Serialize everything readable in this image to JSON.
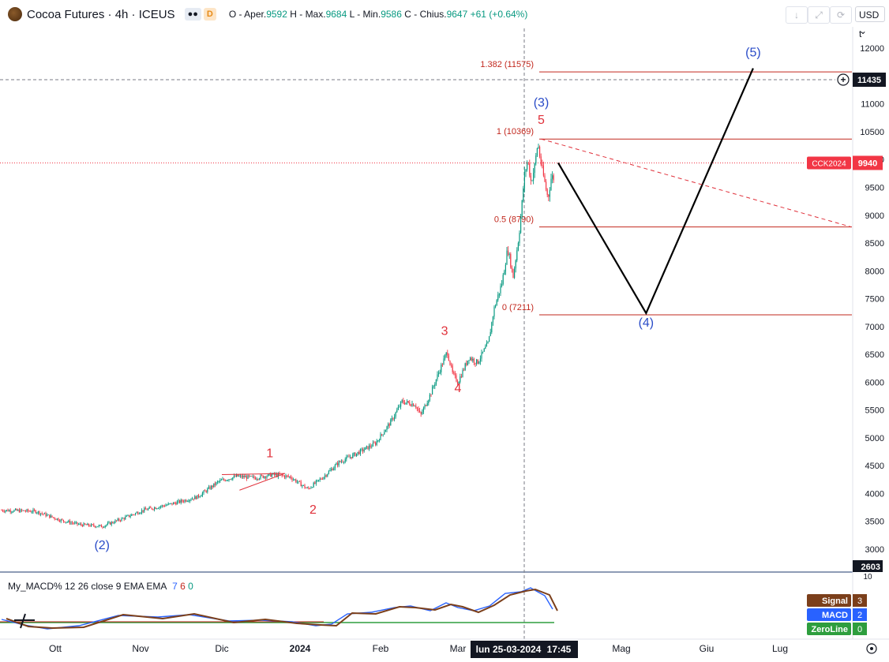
{
  "header": {
    "symbol": "Cocoa Futures · 4h · ICEUS",
    "badge_eye": "",
    "badge_d": "D",
    "ohlc_label_o": "O - Aper.",
    "ohlc_o": "9592",
    "ohlc_label_h": "H - Max.",
    "ohlc_h": "9684",
    "ohlc_label_l": "L - Min.",
    "ohlc_l": "9586",
    "ohlc_label_c": "C - Chius.",
    "ohlc_c": "9647",
    "ohlc_change": "+61 (+0.64%)"
  },
  "toolbar": {
    "download_icon": "↓",
    "expand_icon": "⤢",
    "refresh_icon": "⟳",
    "currency": "USD",
    "currency_arrow": "⌄",
    "unit": "t"
  },
  "price_axis": {
    "ticks": [
      "12000",
      "11500",
      "11000",
      "10500",
      "10000",
      "9500",
      "9000",
      "8500",
      "8000",
      "7500",
      "7000",
      "6500",
      "6000",
      "5500",
      "5000",
      "4500",
      "4000",
      "3500",
      "3000"
    ],
    "crosshair_price": "11435",
    "last_price_label": "CCK2024",
    "last_price": "9940",
    "low_label": "2603",
    "macd_top_tick": "10"
  },
  "time_axis": {
    "labels": [
      "Ott",
      "Nov",
      "Dic",
      "2024",
      "Feb",
      "Mar",
      "Mag",
      "Giu",
      "Lug"
    ],
    "crosshair_date": "lun 25-03-2024",
    "crosshair_time": "17:45"
  },
  "fib_levels": [
    {
      "label": "1.382 (11575)",
      "price": 11575
    },
    {
      "label": "1 (10369)",
      "price": 10369
    },
    {
      "label": "0.5 (8790)",
      "price": 8790
    },
    {
      "label": "0 (7211)",
      "price": 7211
    }
  ],
  "wave_labels": {
    "w2_major": "(2)",
    "w3_major": "(3)",
    "w4_major": "(4)",
    "w5_major": "(5)",
    "w1": "1",
    "w2": "2",
    "w3": "3",
    "w4": "4",
    "w5": "5"
  },
  "macd": {
    "title": "My_MACD% 12 26 close 9 EMA EMA",
    "p1": "7",
    "p2": "6",
    "p3": "0",
    "legend": [
      {
        "name": "Signal",
        "value": "3",
        "color": "#7b3f1b"
      },
      {
        "name": "MACD",
        "value": "2",
        "color": "#2962ff"
      },
      {
        "name": "ZeroLine",
        "value": "0",
        "color": "#2e9e3e"
      }
    ]
  },
  "colors": {
    "up": "#089981",
    "down": "#f23645",
    "fib": "#c2281e",
    "major_wave": "#2a4cc8",
    "minor_wave": "#e0303a",
    "projection": "#000000"
  },
  "chart_data": {
    "type": "candlestick",
    "title": "Cocoa Futures · 4h · ICEUS",
    "x_range": [
      "2023-09-20",
      "2024-07-20"
    ],
    "ylim": [
      2603,
      12300
    ],
    "path_points": [
      {
        "date": "2023-09-20",
        "price": 3700
      },
      {
        "date": "2023-09-27",
        "price": 3680
      },
      {
        "date": "2023-10-03",
        "price": 3520
      },
      {
        "date": "2023-10-10",
        "price": 3440
      },
      {
        "date": "2023-10-18",
        "price": 3410
      },
      {
        "date": "2023-10-26",
        "price": 3560
      },
      {
        "date": "2023-11-02",
        "price": 3700
      },
      {
        "date": "2023-11-13",
        "price": 3820
      },
      {
        "date": "2023-11-22",
        "price": 3940
      },
      {
        "date": "2023-11-30",
        "price": 4220
      },
      {
        "date": "2023-12-07",
        "price": 4310
      },
      {
        "date": "2023-12-14",
        "price": 4280
      },
      {
        "date": "2023-12-21",
        "price": 4340
      },
      {
        "date": "2023-12-28",
        "price": 4300
      },
      {
        "date": "2024-01-04",
        "price": 4080
      },
      {
        "date": "2024-01-10",
        "price": 4300
      },
      {
        "date": "2024-01-16",
        "price": 4560
      },
      {
        "date": "2024-01-22",
        "price": 4700
      },
      {
        "date": "2024-01-30",
        "price": 4900
      },
      {
        "date": "2024-02-05",
        "price": 5300
      },
      {
        "date": "2024-02-09",
        "price": 5650
      },
      {
        "date": "2024-02-14",
        "price": 5600
      },
      {
        "date": "2024-02-16",
        "price": 5400
      },
      {
        "date": "2024-02-20",
        "price": 5820
      },
      {
        "date": "2024-02-23",
        "price": 6200
      },
      {
        "date": "2024-02-26",
        "price": 6550
      },
      {
        "date": "2024-02-28",
        "price": 6150
      },
      {
        "date": "2024-03-01",
        "price": 6000
      },
      {
        "date": "2024-03-05",
        "price": 6450
      },
      {
        "date": "2024-03-08",
        "price": 6350
      },
      {
        "date": "2024-03-12",
        "price": 6700
      },
      {
        "date": "2024-03-14",
        "price": 7300
      },
      {
        "date": "2024-03-17",
        "price": 7800
      },
      {
        "date": "2024-03-19",
        "price": 8400
      },
      {
        "date": "2024-03-21",
        "price": 7900
      },
      {
        "date": "2024-03-23",
        "price": 8600
      },
      {
        "date": "2024-03-24",
        "price": 9100
      },
      {
        "date": "2024-03-25",
        "price": 9700
      },
      {
        "date": "2024-03-26",
        "price": 10000
      },
      {
        "date": "2024-03-27",
        "price": 9600
      },
      {
        "date": "2024-03-28",
        "price": 9850
      },
      {
        "date": "2024-03-29",
        "price": 10300
      },
      {
        "date": "2024-03-30",
        "price": 9900
      },
      {
        "date": "2024-04-01",
        "price": 9300
      },
      {
        "date": "2024-04-02",
        "price": 9700
      },
      {
        "date": "2024-04-03",
        "price": 9647
      }
    ],
    "projection": [
      {
        "date": "2024-04-04",
        "price": 9940
      },
      {
        "date": "2024-05-10",
        "price": 7240
      },
      {
        "date": "2024-06-20",
        "price": 11640
      }
    ],
    "trendline": [
      {
        "date": "2024-03-30",
        "price": 10369
      },
      {
        "date": "2024-07-20",
        "price": 8790
      }
    ],
    "wave_points": {
      "w2_major": {
        "date": "2023-10-18",
        "price": 3000
      },
      "w3_major": {
        "date": "2024-03-30",
        "price": 10950
      },
      "w4_major": {
        "date": "2024-05-10",
        "price": 7000
      },
      "w5_major": {
        "date": "2024-06-20",
        "price": 11850
      },
      "w1": {
        "date": "2023-12-20",
        "price": 4650
      },
      "w2": {
        "date": "2024-01-06",
        "price": 3640
      },
      "w3": {
        "date": "2024-02-25",
        "price": 6850
      },
      "w4": {
        "date": "2024-03-01",
        "price": 5820
      },
      "w5": {
        "date": "2024-03-30",
        "price": 10640
      }
    },
    "triangle": [
      {
        "date": "2023-12-01",
        "price": 4340
      },
      {
        "date": "2023-12-26",
        "price": 4360
      },
      {
        "date": "2023-12-08",
        "price": 4060
      }
    ],
    "crosshair": {
      "date": "2024-03-25",
      "price": 11435
    },
    "last_price": 9940
  }
}
